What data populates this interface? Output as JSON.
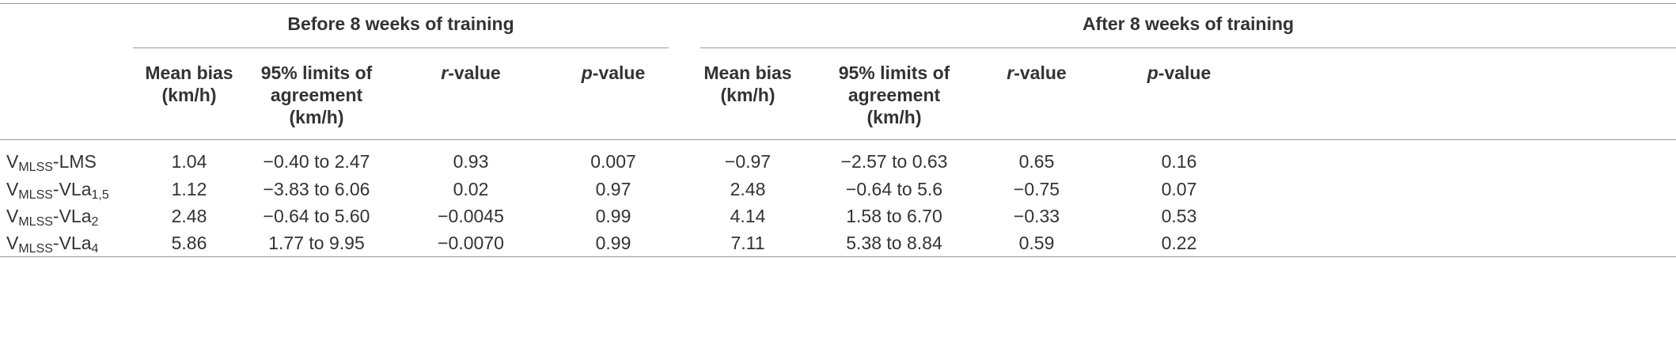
{
  "table": {
    "groups": [
      "Before 8 weeks of training",
      "After 8 weeks of training"
    ],
    "column_headers": [
      [
        [
          {
            "text": "Mean bias"
          }
        ],
        [
          {
            "text": "(km/h)"
          }
        ]
      ],
      [
        [
          {
            "text": "95% limits of"
          }
        ],
        [
          {
            "text": "agreement"
          }
        ],
        [
          {
            "text": "(km/h)"
          }
        ]
      ],
      [
        [
          {
            "text": "r",
            "italic": true
          },
          {
            "text": "-value"
          }
        ]
      ],
      [
        [
          {
            "text": "p",
            "italic": true
          },
          {
            "text": "-value"
          }
        ]
      ],
      [
        [
          {
            "text": "Mean bias"
          }
        ],
        [
          {
            "text": "(km/h)"
          }
        ]
      ],
      [
        [
          {
            "text": "95% limits of"
          }
        ],
        [
          {
            "text": "agreement"
          }
        ],
        [
          {
            "text": "(km/h)"
          }
        ]
      ],
      [
        [
          {
            "text": "r",
            "italic": true
          },
          {
            "text": "-value"
          }
        ]
      ],
      [
        [
          {
            "text": "p",
            "italic": true
          },
          {
            "text": "-value"
          }
        ]
      ]
    ],
    "rows": [
      {
        "label": [
          {
            "text": "V"
          },
          {
            "text": "MLSS",
            "sub": true
          },
          {
            "text": "-LMS"
          }
        ],
        "cells": [
          "1.04",
          "−0.40 to 2.47",
          "0.93",
          "0.007",
          "−0.97",
          "−2.57 to 0.63",
          "0.65",
          "0.16"
        ]
      },
      {
        "label": [
          {
            "text": "V"
          },
          {
            "text": "MLSS",
            "sub": true
          },
          {
            "text": "-VLa"
          },
          {
            "text": "1,5",
            "sub": true
          }
        ],
        "cells": [
          "1.12",
          "−3.83 to 6.06",
          "0.02",
          "0.97",
          "2.48",
          "−0.64 to 5.6",
          "−0.75",
          "0.07"
        ]
      },
      {
        "label": [
          {
            "text": "V"
          },
          {
            "text": "MLSS",
            "sub": true
          },
          {
            "text": "-VLa"
          },
          {
            "text": "2",
            "sub": true
          }
        ],
        "cells": [
          "2.48",
          "−0.64 to 5.60",
          "−0.0045",
          "0.99",
          "4.14",
          "1.58 to 6.70",
          "−0.33",
          "0.53"
        ]
      },
      {
        "label": [
          {
            "text": "V"
          },
          {
            "text": "MLSS",
            "sub": true
          },
          {
            "text": "-VLa"
          },
          {
            "text": "4",
            "sub": true
          }
        ],
        "cells": [
          "5.86",
          "1.77 to 9.95",
          "−0.0070",
          "0.99",
          "7.11",
          "5.38 to 8.84",
          "0.59",
          "0.22"
        ]
      }
    ]
  }
}
